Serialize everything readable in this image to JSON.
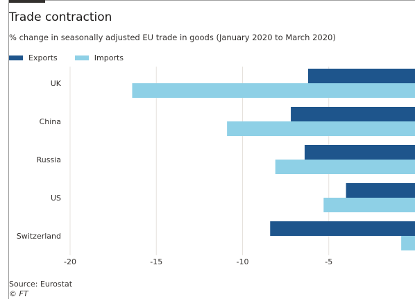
{
  "header": {
    "title": "Trade contraction",
    "subtitle": "% change in seasonally adjusted EU trade in goods (January 2020 to March 2020)"
  },
  "footer": {
    "source": "Source: Eurostat",
    "credit": "© FT"
  },
  "colors": {
    "exports": "#1e558c",
    "imports": "#8ed0e6",
    "grid": "#e6e2dd",
    "axis_text": "#33302e"
  },
  "chart_data": {
    "type": "bar",
    "orientation": "horizontal",
    "title": "Trade contraction",
    "subtitle": "% change in seasonally adjusted EU trade in goods (January 2020 to March 2020)",
    "categories": [
      "UK",
      "China",
      "Russia",
      "US",
      "Switzerland"
    ],
    "series": [
      {
        "name": "Exports",
        "values": [
          -6.2,
          -7.2,
          -6.4,
          -4.0,
          -8.4
        ]
      },
      {
        "name": "Imports",
        "values": [
          -16.4,
          -10.9,
          -8.1,
          -5.3,
          -0.8
        ]
      }
    ],
    "xlim": [
      -20,
      0
    ],
    "xticks": [
      -20,
      -15,
      -10,
      -5
    ],
    "xtick_labels": [
      "-20",
      "-15",
      "-10",
      "-5"
    ],
    "grid": "vertical",
    "legend": "top-left",
    "xlabel": "",
    "ylabel": ""
  }
}
